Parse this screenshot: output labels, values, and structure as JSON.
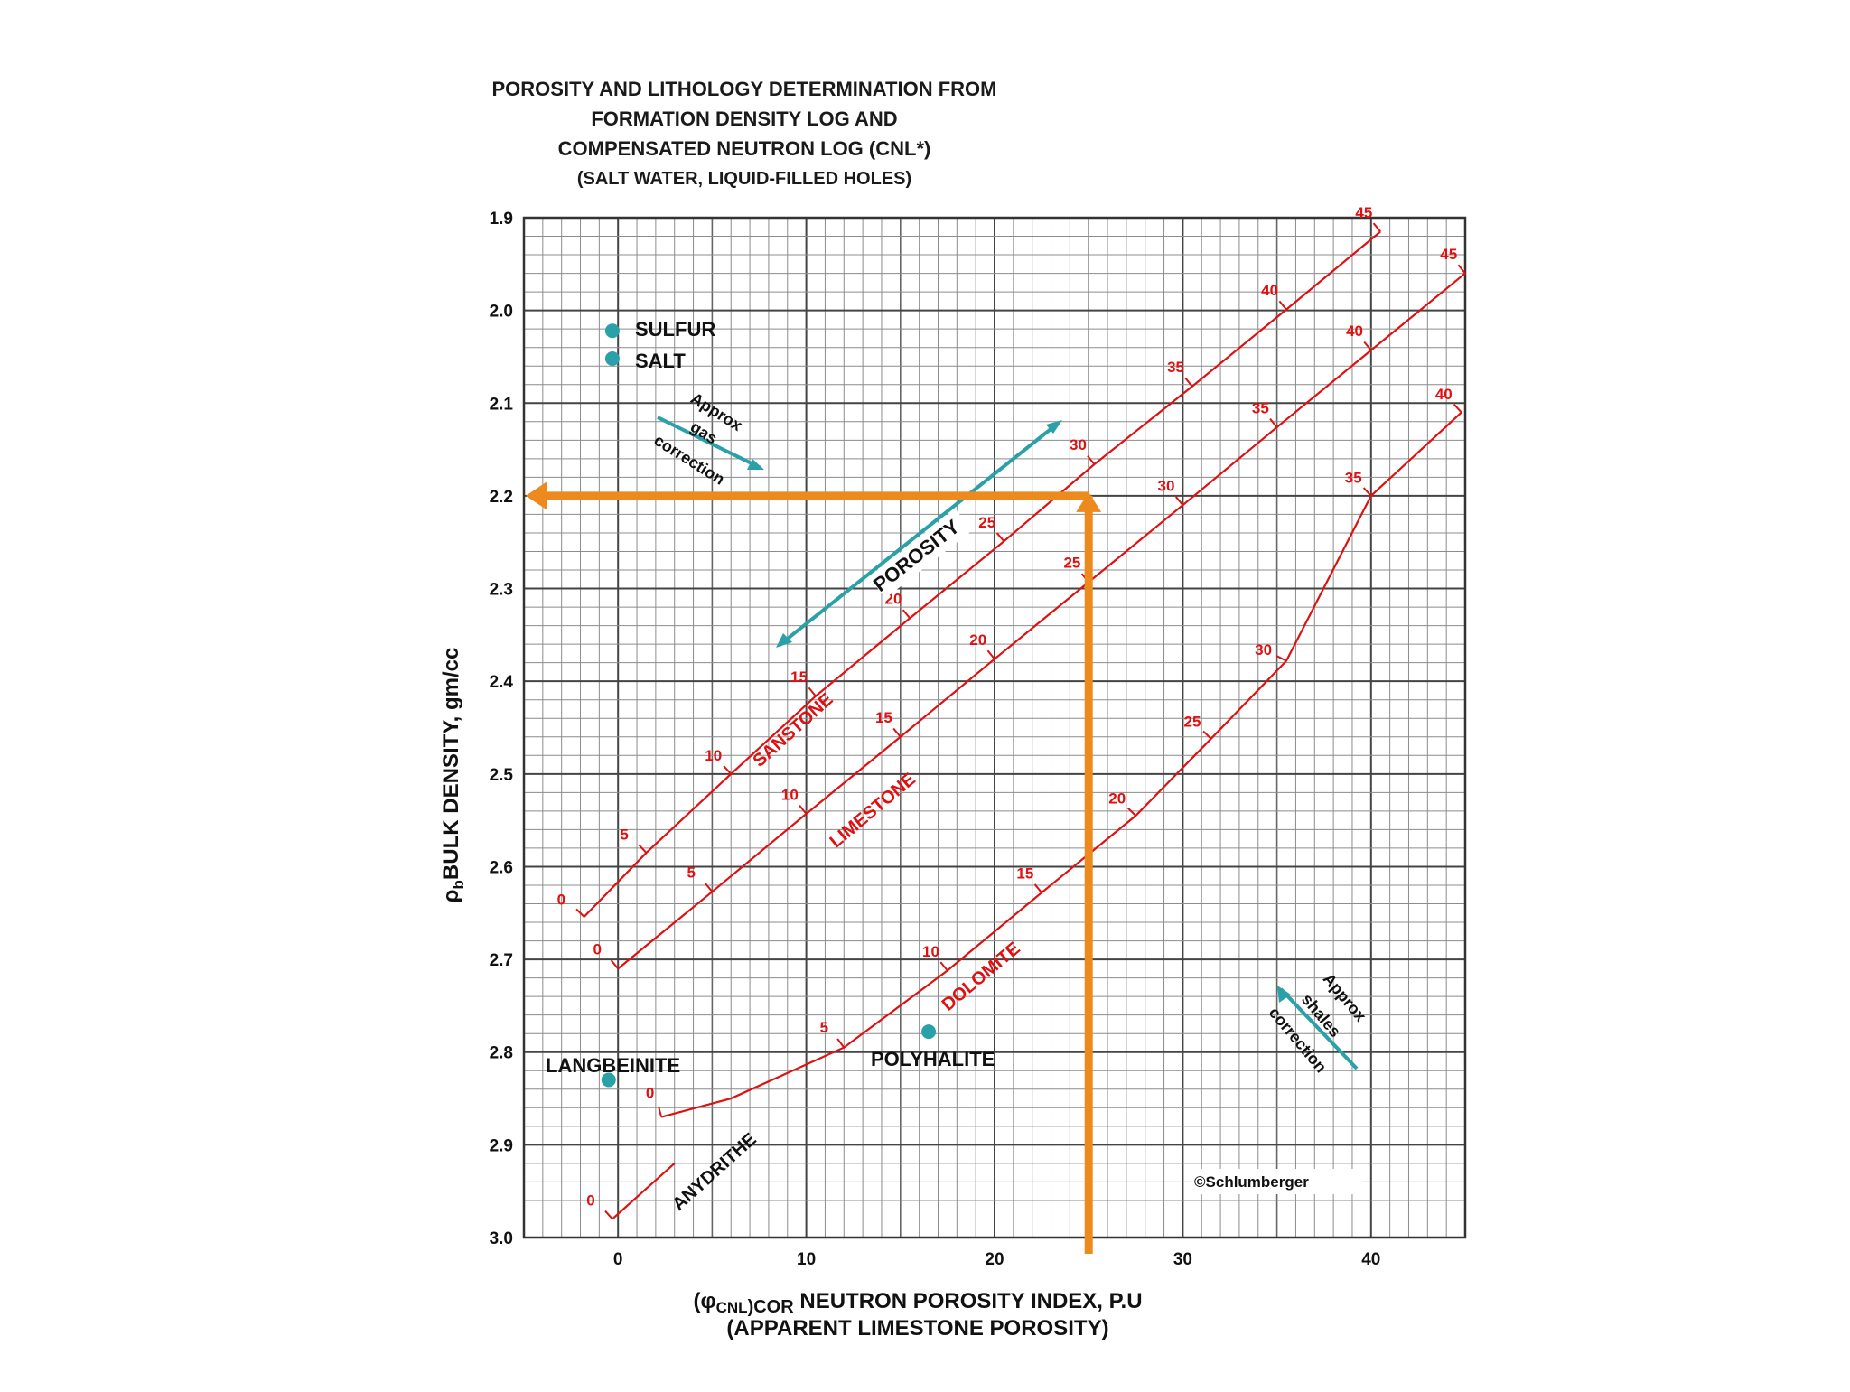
{
  "chart_data": {
    "type": "line",
    "title": [
      "POROSITY AND LITHOLOGY DETERMINATION FROM",
      "FORMATION DENSITY LOG AND",
      "COMPENSATED NEUTRON LOG (CNL*)",
      "(SALT WATER, LIQUID-FILLED HOLES)"
    ],
    "ylabel_main": "BULK DENSITY, gm/cc",
    "ylabel_rho": "ρ",
    "ylabel_sub": "b",
    "xlabel_prefix_symbol": "(φ",
    "xlabel_prefix_sub1": "CNL",
    "xlabel_prefix_sub2": ")COR",
    "xlabel_main": " NEUTRON POROSITY INDEX, P.U",
    "xlabel_line2": "(APPARENT LIMESTONE POROSITY)",
    "xlim": [
      -5,
      45
    ],
    "ylim": [
      1.9,
      3.0
    ],
    "y_inverted": true,
    "grid": true,
    "x_ticks": [
      "0",
      "10",
      "20",
      "30",
      "40"
    ],
    "x_tick_values": [
      0,
      10,
      20,
      30,
      40
    ],
    "y_ticks": [
      "1.9",
      "2.0",
      "2.1",
      "2.2",
      "2.3",
      "2.4",
      "2.5",
      "2.6",
      "2.7",
      "2.8",
      "2.9",
      "3.0"
    ],
    "y_tick_values": [
      1.9,
      2.0,
      2.1,
      2.2,
      2.3,
      2.4,
      2.5,
      2.6,
      2.7,
      2.8,
      2.9,
      3.0
    ],
    "series": [
      {
        "name": "SANSTONE",
        "color": "#e01010",
        "x": [
          -1.8,
          1.5,
          6,
          10.5,
          15.5,
          20.5,
          25.3,
          30.5,
          35.5,
          40.5
        ],
        "y": [
          2.654,
          2.585,
          2.5,
          2.416,
          2.332,
          2.249,
          2.166,
          2.082,
          1.999,
          1.915
        ],
        "porosity_labels": [
          "0",
          "5",
          "10",
          "15",
          "20",
          "25",
          "30",
          "35",
          "40",
          "45"
        ],
        "label_idx": [
          0,
          1,
          2,
          3,
          4,
          5,
          6,
          7,
          8,
          9
        ]
      },
      {
        "name": "LIMESTONE",
        "color": "#e01010",
        "x": [
          0,
          5,
          10,
          15,
          20,
          25,
          30,
          35,
          40,
          45
        ],
        "y": [
          2.71,
          2.627,
          2.543,
          2.46,
          2.376,
          2.293,
          2.21,
          2.126,
          2.043,
          1.96
        ],
        "porosity_labels": [
          "0",
          "5",
          "10",
          "15",
          "20",
          "25",
          "30",
          "35",
          "40",
          "45"
        ],
        "label_idx": [
          0,
          1,
          2,
          3,
          4,
          5,
          6,
          7,
          8,
          9
        ]
      },
      {
        "name": "DOLOMITE",
        "color": "#e01010",
        "x": [
          2.3,
          6,
          12,
          17.5,
          22.5,
          27.5,
          31.5,
          35.5,
          40,
          44.8
        ],
        "y": [
          2.87,
          2.85,
          2.795,
          2.712,
          2.628,
          2.545,
          2.462,
          2.378,
          2.2,
          2.11
        ],
        "porosity_labels": [
          "0",
          "5",
          "10",
          "15",
          "20",
          "25",
          "30",
          "35",
          "40"
        ],
        "label_idx": [
          0,
          2,
          3,
          4,
          5,
          6,
          7,
          8,
          9
        ]
      },
      {
        "name": "ANYDRITHE",
        "color": "#e01010",
        "x": [
          -0.3,
          3
        ],
        "y": [
          2.98,
          2.92
        ],
        "porosity_labels": [
          "0"
        ],
        "label_idx": [
          0
        ]
      }
    ],
    "minerals": [
      {
        "name": "SULFUR",
        "x": -0.3,
        "y": 2.022
      },
      {
        "name": "SALT",
        "x": -0.3,
        "y": 2.052
      },
      {
        "name": "LANGBEINITE",
        "x": -0.5,
        "y": 2.83
      },
      {
        "name": "POLYHALITE",
        "x": 16.5,
        "y": 2.778
      }
    ],
    "annotations": {
      "porosity_arrow": "POROSITY",
      "gas_correction": [
        "Approx",
        "gas",
        "correction"
      ],
      "shales_correction": [
        "Approx",
        "shales",
        "correction"
      ],
      "copyright": "©Schlumberger"
    },
    "reading_lines": {
      "color": "#ec8a1e",
      "x": 25,
      "y": 2.2
    },
    "colors": {
      "curves": "#e01010",
      "markers": "#2aa0a8",
      "reading": "#ec8a1e",
      "grid": "#8c8c8c"
    }
  }
}
